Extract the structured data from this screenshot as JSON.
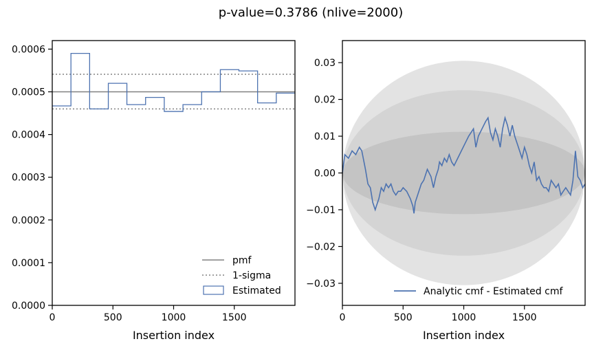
{
  "figure": {
    "suptitle": "p-value=0.3786 (nlive=2000)"
  },
  "chart_data": [
    {
      "type": "histogram",
      "xlabel": "Insertion index",
      "ylabel": "",
      "xlim": [
        0,
        2000
      ],
      "ylim": [
        0,
        0.00062
      ],
      "xticks": [
        0,
        500,
        1000,
        1500
      ],
      "xtick_labels": [
        "0",
        "500",
        "1000",
        "1500"
      ],
      "yticks": [
        0,
        0.0001,
        0.0002,
        0.0003,
        0.0004,
        0.0005,
        0.0006
      ],
      "ytick_labels": [
        "0.0000",
        "0.0001",
        "0.0002",
        "0.0003",
        "0.0004",
        "0.0005",
        "0.0006"
      ],
      "pmf": 0.0005,
      "sigma_band": [
        0.00046,
        0.000541
      ],
      "bin_edges": [
        0,
        154,
        308,
        462,
        615,
        769,
        923,
        1077,
        1231,
        1385,
        1538,
        1692,
        1846,
        2000
      ],
      "estimated": [
        0.000467,
        0.00059,
        0.00046,
        0.00052,
        0.00047,
        0.000487,
        0.000454,
        0.00047,
        0.0005,
        0.000552,
        0.000549,
        0.000474,
        0.000497
      ],
      "legend_position": "lower right",
      "legend": [
        {
          "label": "pmf",
          "style": "solid-line",
          "color": "#808080"
        },
        {
          "label": "1-sigma",
          "style": "dotted-line",
          "color": "#808080"
        },
        {
          "label": "Estimated",
          "style": "step-box",
          "color": "#4c72b0"
        }
      ]
    },
    {
      "type": "line",
      "xlabel": "Insertion index",
      "ylabel": "",
      "xlim": [
        0,
        2000
      ],
      "ylim": [
        -0.036,
        0.036
      ],
      "xticks": [
        0,
        500,
        1000,
        1500
      ],
      "xtick_labels": [
        "0",
        "500",
        "1000",
        "1500"
      ],
      "yticks": [
        -0.03,
        -0.02,
        -0.01,
        0.0,
        0.01,
        0.02,
        0.03
      ],
      "ytick_labels": [
        "−0.03",
        "−0.02",
        "−0.01",
        "0.00",
        "0.01",
        "0.02",
        "0.03"
      ],
      "bands": [
        {
          "name": "3-sigma",
          "half_width": 0.0305,
          "color": "#e3e3e3"
        },
        {
          "name": "2-sigma",
          "half_width": 0.0225,
          "color": "#d4d4d4"
        },
        {
          "name": "1-sigma",
          "half_width": 0.0112,
          "color": "#c4c4c4"
        }
      ],
      "series": [
        {
          "name": "Analytic cmf - Estimated cmf",
          "color": "#4c72b0",
          "x": [
            0,
            20,
            50,
            80,
            110,
            140,
            160,
            190,
            210,
            230,
            240,
            250,
            270,
            280,
            300,
            320,
            340,
            360,
            380,
            400,
            420,
            440,
            460,
            480,
            500,
            530,
            560,
            580,
            590,
            600,
            620,
            650,
            670,
            700,
            730,
            750,
            770,
            790,
            800,
            820,
            840,
            860,
            880,
            900,
            920,
            950,
            980,
            1010,
            1040,
            1060,
            1080,
            1100,
            1120,
            1150,
            1180,
            1200,
            1220,
            1240,
            1260,
            1280,
            1300,
            1320,
            1340,
            1360,
            1380,
            1400,
            1420,
            1440,
            1460,
            1480,
            1500,
            1520,
            1540,
            1560,
            1580,
            1600,
            1620,
            1640,
            1660,
            1680,
            1700,
            1720,
            1740,
            1760,
            1780,
            1800,
            1820,
            1840,
            1860,
            1880,
            1900,
            1920,
            1940,
            1960,
            1980,
            2000
          ],
          "values": [
            0.0,
            0.005,
            0.004,
            0.006,
            0.005,
            0.007,
            0.006,
            0.001,
            -0.003,
            -0.004,
            -0.006,
            -0.008,
            -0.01,
            -0.009,
            -0.007,
            -0.004,
            -0.005,
            -0.003,
            -0.004,
            -0.003,
            -0.005,
            -0.006,
            -0.005,
            -0.005,
            -0.004,
            -0.005,
            -0.007,
            -0.009,
            -0.011,
            -0.008,
            -0.006,
            -0.003,
            -0.002,
            0.001,
            -0.001,
            -0.004,
            -0.001,
            0.001,
            0.003,
            0.002,
            0.004,
            0.003,
            0.005,
            0.003,
            0.002,
            0.004,
            0.006,
            0.008,
            0.01,
            0.011,
            0.012,
            0.007,
            0.01,
            0.012,
            0.014,
            0.015,
            0.011,
            0.009,
            0.012,
            0.01,
            0.007,
            0.012,
            0.015,
            0.013,
            0.01,
            0.013,
            0.01,
            0.008,
            0.006,
            0.004,
            0.007,
            0.005,
            0.002,
            0.0,
            0.003,
            -0.002,
            -0.001,
            -0.003,
            -0.004,
            -0.004,
            -0.005,
            -0.002,
            -0.003,
            -0.004,
            -0.003,
            -0.006,
            -0.005,
            -0.004,
            -0.005,
            -0.006,
            -0.002,
            0.006,
            -0.001,
            -0.002,
            -0.004,
            -0.003
          ]
        }
      ],
      "legend_position": "lower right",
      "legend": [
        {
          "label": "Analytic cmf - Estimated cmf",
          "style": "solid-line",
          "color": "#4c72b0"
        }
      ]
    }
  ]
}
